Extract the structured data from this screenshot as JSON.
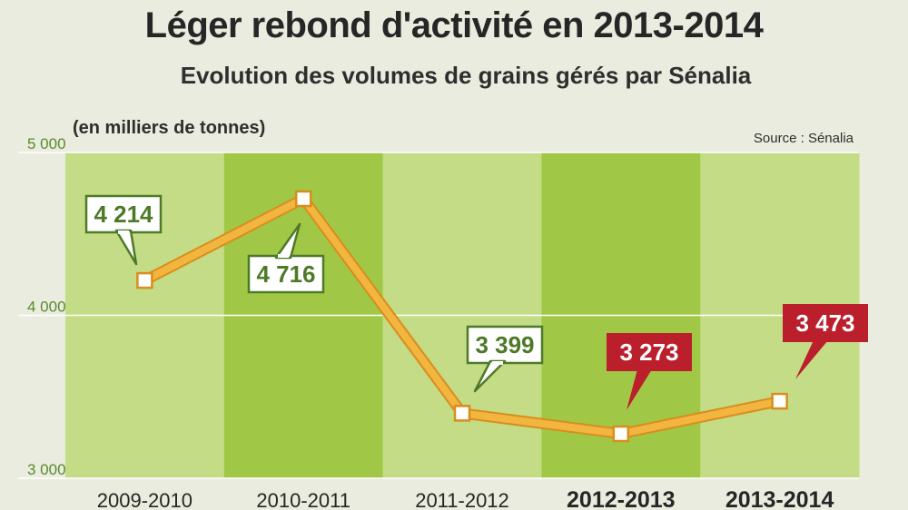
{
  "title": "Léger rebond d'activité en 2013-2014",
  "subtitle": "Evolution des volumes de grains gérés par Sénalia",
  "unit_note": "(en milliers de tonnes)",
  "source": "Source : Sénalia",
  "colors": {
    "band_light": "#c4dc86",
    "band_dark": "#a0c846",
    "line": "#f2b540",
    "line_edge": "#d98d1c",
    "label_green": "#4e7a28",
    "label_red": "#bc1f2c",
    "tick_text": "#5a8a2e"
  },
  "chart_data": {
    "type": "line",
    "categories": [
      "2009-2010",
      "2010-2011",
      "2011-2012",
      "2012-2013",
      "2013-2014"
    ],
    "series": [
      {
        "values": [
          4214,
          4716,
          3399,
          3273,
          3473
        ]
      }
    ],
    "data_labels": [
      "4 214",
      "4 716",
      "3 399",
      "3 273",
      "3 473"
    ],
    "highlighted": [
      false,
      false,
      false,
      true,
      true
    ],
    "ylim": [
      3000,
      5000
    ],
    "yticks": [
      3000,
      4000,
      5000
    ],
    "ytick_labels": [
      "3 000",
      "4 000",
      "5 000"
    ],
    "grid": true
  }
}
